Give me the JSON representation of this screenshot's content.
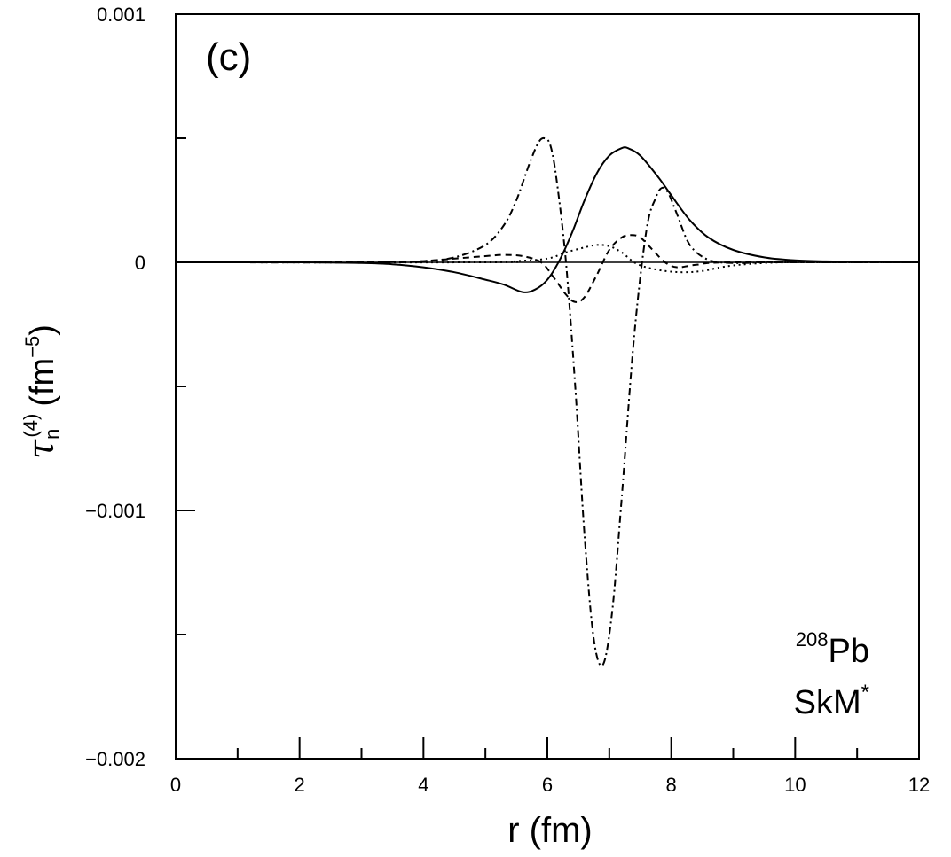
{
  "chart_data": {
    "type": "line",
    "panel_label": "(c)",
    "xlabel": "r (fm)",
    "ylabel": {
      "symbol": "τ",
      "subscript": "n",
      "superscript": "(4)",
      "unit": "(fm",
      "unit_exp": "−5",
      "unit_close": ")"
    },
    "xlim": [
      0,
      12
    ],
    "ylim": [
      -0.002,
      0.001
    ],
    "x_major_ticks": [
      0,
      2,
      4,
      6,
      8,
      10,
      12
    ],
    "x_tick_labels": [
      "0",
      "2",
      "4",
      "6",
      "8",
      "10",
      "12"
    ],
    "x_minor_ticks": [
      1,
      3,
      5,
      7,
      9,
      11
    ],
    "y_major_ticks": [
      -0.002,
      -0.001,
      0,
      0.001
    ],
    "y_tick_labels": [
      "−0.002",
      "−0.001",
      "0",
      "0.001"
    ],
    "y_minor_ticks": [
      -0.0015,
      -0.0005,
      0.0005
    ],
    "zero_line": true,
    "grid": false,
    "annotations": {
      "nucleus_mass": "208",
      "nucleus_symbol": "Pb",
      "force_name": "SkM",
      "force_mark": "*"
    },
    "series": [
      {
        "style": "solid",
        "x": [
          0,
          2,
          3,
          3.5,
          4,
          4.5,
          5,
          5.3,
          5.6,
          5.8,
          6.0,
          6.2,
          6.4,
          6.6,
          6.8,
          7.0,
          7.2,
          7.3,
          7.5,
          7.8,
          8.0,
          8.3,
          8.6,
          9.0,
          9.5,
          10,
          10.5,
          11,
          12
        ],
        "y": [
          0,
          0,
          -3e-06,
          -8e-06,
          -2e-05,
          -4e-05,
          -7e-05,
          -9e-05,
          -0.00012,
          -0.00011,
          -7e-05,
          1e-05,
          0.00012,
          0.00025,
          0.00036,
          0.00043,
          0.00046,
          0.00046,
          0.00043,
          0.00034,
          0.00027,
          0.00017,
          0.0001,
          5e-05,
          2e-05,
          8e-06,
          4e-06,
          2e-06,
          0
        ]
      },
      {
        "style": "dashed",
        "x": [
          0,
          3,
          4,
          4.5,
          5.0,
          5.3,
          5.6,
          5.9,
          6.1,
          6.3,
          6.45,
          6.6,
          6.8,
          7.0,
          7.2,
          7.35,
          7.5,
          7.7,
          7.9,
          8.1,
          8.4,
          9,
          12
        ],
        "y": [
          0,
          0,
          5e-06,
          1.5e-05,
          2.5e-05,
          3e-05,
          2.5e-05,
          0.0,
          -6e-05,
          -0.00013,
          -0.00016,
          -0.00014,
          -5e-05,
          5e-05,
          0.0001,
          0.00011,
          0.0001,
          5e-05,
          0.0,
          -2e-05,
          -1e-05,
          0,
          0
        ]
      },
      {
        "style": "dotted",
        "x": [
          0,
          5,
          5.5,
          6.0,
          6.3,
          6.6,
          6.8,
          7.0,
          7.2,
          7.4,
          7.6,
          7.9,
          8.2,
          8.5,
          8.8,
          9.1,
          9.5,
          10,
          12
        ],
        "y": [
          0,
          0,
          5e-06,
          1.5e-05,
          4e-05,
          6e-05,
          7e-05,
          6.5e-05,
          4e-05,
          0.0,
          -2e-05,
          -3.5e-05,
          -4e-05,
          -3.5e-05,
          -2e-05,
          -1e-05,
          -3e-06,
          0,
          0
        ]
      },
      {
        "style": "dash-dot",
        "x": [
          0,
          3.5,
          4.0,
          4.5,
          5.0,
          5.3,
          5.5,
          5.7,
          5.85,
          5.95,
          6.05,
          6.15,
          6.3,
          6.45,
          6.6,
          6.75,
          6.9,
          7.05,
          7.2,
          7.4,
          7.6,
          7.75,
          7.85,
          7.95,
          8.1,
          8.3,
          8.6,
          9.0,
          9.5,
          10,
          12
        ],
        "y": [
          0,
          0,
          5e-06,
          2e-05,
          7e-05,
          0.00015,
          0.00025,
          0.00039,
          0.00048,
          0.0005,
          0.00047,
          0.00033,
          0.0,
          -0.0005,
          -0.0011,
          -0.00152,
          -0.00162,
          -0.0014,
          -0.00095,
          -0.0003,
          0.00013,
          0.00026,
          0.0003,
          0.00028,
          0.00019,
          7e-05,
          1e-05,
          -3e-06,
          0,
          0,
          0
        ]
      }
    ]
  }
}
